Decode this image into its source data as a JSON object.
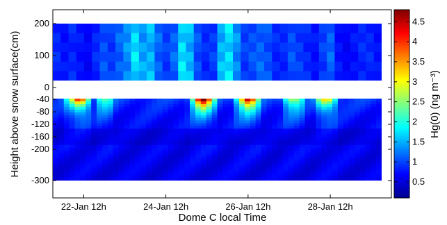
{
  "chart_data": {
    "type": "heatmap",
    "title": "",
    "xlabel": "Dome C local Time",
    "ylabel": "Height above snow surface(cm)",
    "x_ticks": [
      "22-Jan 12h",
      "24-Jan 12h",
      "26-Jan 12h",
      "28-Jan 12h"
    ],
    "y_ticks": [
      200,
      100,
      0,
      -40,
      -80,
      -120,
      -160,
      -200,
      -300
    ],
    "colorbar": {
      "label": "Hg(0) (ng m⁻³)",
      "range": [
        0.1,
        4.8
      ],
      "ticks": [
        "0.5",
        "1",
        "1.5",
        "2",
        "2.5",
        "3",
        "3.5",
        "4",
        "4.5"
      ],
      "colormap": "jet"
    },
    "above_snow": {
      "heights_cm": [
        20,
        200
      ],
      "concentration_ng_m3": [
        0.9,
        0.8,
        0.9,
        0.8,
        0.7,
        0.9,
        1.1,
        1.0,
        1.2,
        1.4,
        1.8,
        1.5,
        1.6,
        1.2,
        1.0,
        1.2,
        1.8,
        1.6,
        1.1,
        0.9,
        1.0,
        1.6,
        1.8,
        1.4,
        1.0,
        1.1,
        1.2,
        1.1,
        0.9,
        0.9,
        1.1,
        1.0,
        0.9,
        0.8,
        1.0,
        1.2,
        0.8,
        0.7,
        0.8,
        0.9,
        0.9,
        0.8
      ]
    },
    "in_snow": {
      "depths_cm": [
        -40,
        -300
      ],
      "surface_peaks": [
        {
          "time": "21.4",
          "value": 3.8
        },
        {
          "time": "22.0",
          "value": 2.0
        },
        {
          "time": "24.4",
          "value": 4.8
        },
        {
          "time": "25.5",
          "value": 4.3
        },
        {
          "time": "26.6",
          "value": 2.5
        },
        {
          "time": "27.4",
          "value": 3.0
        }
      ]
    }
  }
}
